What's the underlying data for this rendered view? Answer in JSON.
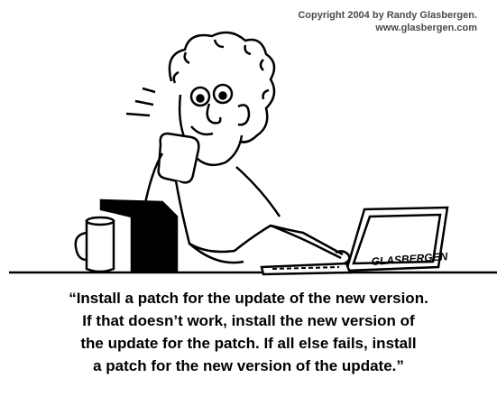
{
  "credits": {
    "copyright": "Copyright 2004 by Randy Glasbergen.",
    "website": "www.glasbergen.com"
  },
  "cartoon": {
    "signature": "GLASBERGEN"
  },
  "caption": {
    "lines": [
      "“Install a patch for the update of the new version.",
      "If that doesn’t work, install the new version of",
      "the update for the patch. If all else fails, install",
      "a patch for the new version of the update.”"
    ]
  }
}
